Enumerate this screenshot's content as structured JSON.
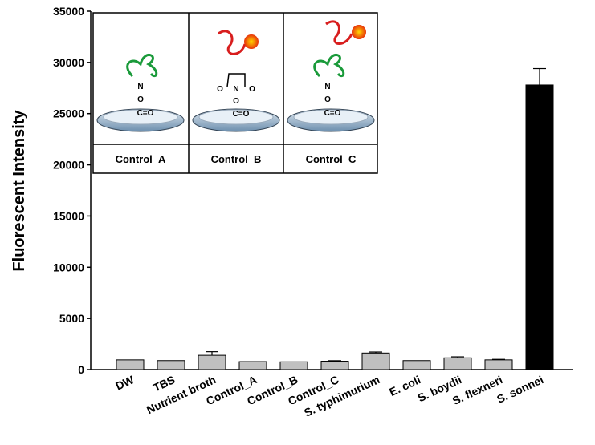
{
  "chart_data": {
    "type": "bar",
    "y_label": "Fluorescent Intensity",
    "categories": [
      "DW",
      "TBS",
      "Nutrient broth",
      "Control_A",
      "Control_B",
      "Control_C",
      "S. typhimurium",
      "E. coli",
      "S. boydii",
      "S. flexneri",
      "S. sonnei"
    ],
    "values": [
      950,
      880,
      1400,
      780,
      760,
      820,
      1620,
      880,
      1150,
      950,
      27800
    ],
    "errors": [
      0,
      0,
      350,
      0,
      0,
      50,
      100,
      0,
      100,
      50,
      1600
    ],
    "colors": [
      "#c0c0c0",
      "#c0c0c0",
      "#c0c0c0",
      "#c0c0c0",
      "#c0c0c0",
      "#c0c0c0",
      "#c0c0c0",
      "#c0c0c0",
      "#c0c0c0",
      "#c0c0c0",
      "#000000"
    ],
    "ylim": [
      0,
      35000
    ],
    "yticks": [
      0,
      5000,
      10000,
      15000,
      20000,
      25000,
      30000,
      35000
    ]
  },
  "inset": {
    "panels": [
      {
        "label": "Control_A",
        "atoms": [
          "N",
          "O",
          "C=O"
        ]
      },
      {
        "label": "Control_B",
        "atoms": [
          "O",
          "N",
          "O",
          "O",
          "C=O"
        ]
      },
      {
        "label": "Control_C",
        "atoms": [
          "N",
          "O",
          "C=O"
        ]
      }
    ]
  }
}
